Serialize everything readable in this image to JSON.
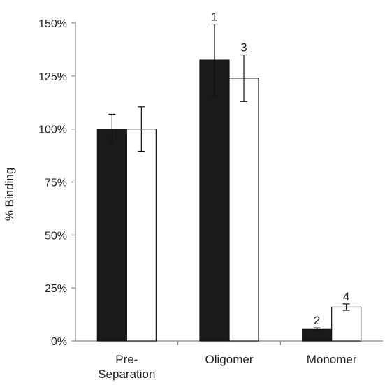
{
  "chart_data": {
    "type": "bar",
    "title": "",
    "xlabel": "",
    "ylabel": "% Binding",
    "ylim": [
      0,
      150
    ],
    "yticks": [
      "0%",
      "25%",
      "50%",
      "75%",
      "100%",
      "125%",
      "150%"
    ],
    "ytick_values": [
      0,
      25,
      50,
      75,
      100,
      125,
      150
    ],
    "categories": [
      "Pre-\nSeparation",
      "Oligomer",
      "Monomer"
    ],
    "grid": false,
    "legend": "none",
    "series": [
      {
        "fill": "#1a1a1a",
        "values": [
          100,
          132.5,
          5.5
        ],
        "errors": [
          7,
          17,
          0.7
        ],
        "labels": [
          "",
          "1",
          "2"
        ]
      },
      {
        "fill": "#ffffff",
        "values": [
          100,
          124,
          16
        ],
        "errors": [
          10.5,
          11,
          1.5
        ],
        "labels": [
          "",
          "3",
          "4"
        ]
      }
    ]
  }
}
